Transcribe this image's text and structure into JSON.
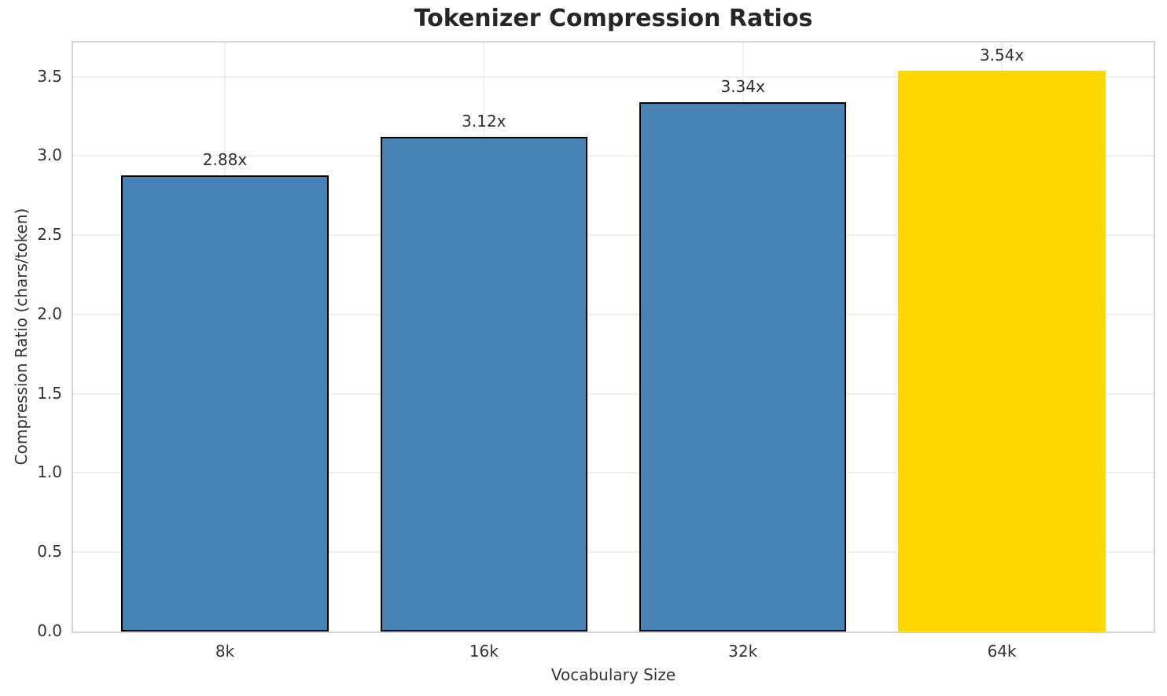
{
  "figure": {
    "title": "Tokenizer Compression Ratios",
    "xlabel": "Vocabulary Size",
    "ylabel": "Compression Ratio (chars/token)"
  },
  "chart_data": {
    "type": "bar",
    "title": "Tokenizer Compression Ratios",
    "xlabel": "Vocabulary Size",
    "ylabel": "Compression Ratio (chars/token)",
    "categories": [
      "8k",
      "16k",
      "32k",
      "64k"
    ],
    "values": [
      2.88,
      3.12,
      3.34,
      3.54
    ],
    "bar_labels": [
      "2.88x",
      "3.12x",
      "3.34x",
      "3.54x"
    ],
    "ylim": [
      0,
      3.717
    ],
    "yticks": [
      0.0,
      0.5,
      1.0,
      1.5,
      2.0,
      2.5,
      3.0,
      3.5
    ],
    "ytick_labels": [
      "0.0",
      "0.5",
      "1.0",
      "1.5",
      "2.0",
      "2.5",
      "3.0",
      "3.5"
    ],
    "grid": "both",
    "legend_position": "none",
    "bar_colors": [
      "#4682B4",
      "#4682B4",
      "#4682B4",
      "#FFD700"
    ],
    "bar_edge_colors": [
      "#000000",
      "#000000",
      "#000000",
      "none"
    ]
  }
}
